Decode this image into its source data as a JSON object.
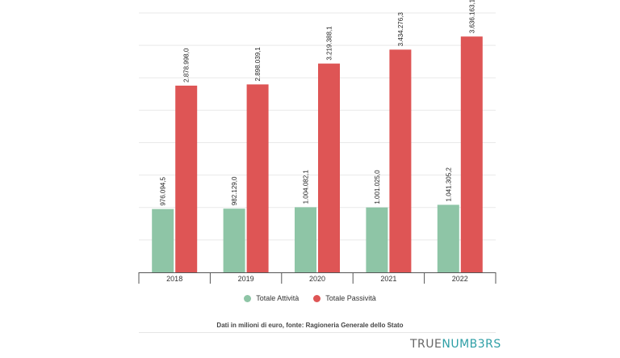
{
  "chart_data": {
    "type": "bar",
    "categories": [
      "2018",
      "2019",
      "2020",
      "2021",
      "2022"
    ],
    "series": [
      {
        "name": "Totale Attività",
        "color": "#8ec5a6",
        "values": [
          976094.5,
          982129.0,
          1004082.1,
          1001025.0,
          1041305.2
        ],
        "labels": [
          "976.094,5",
          "982.129,0",
          "1.004.082,1",
          "1.001.025,0",
          "1.041.305,2"
        ]
      },
      {
        "name": "Totale Passività",
        "color": "#de5555",
        "values": [
          2878998.0,
          2898039.1,
          3219388.1,
          3434276.3,
          3636163.1
        ],
        "labels": [
          "2.878.998,0",
          "2.898.039,1",
          "3.219.388,1",
          "3.434.276,3",
          "3.636.163,1"
        ]
      }
    ],
    "ylim": [
      0,
      4000000
    ],
    "grid": true,
    "legend": "bottom"
  },
  "source_note": "Dati in milioni di euro, fonte: Ragioneria Generale dello Stato",
  "brand": {
    "part1": "TRUE",
    "part2": "NUMB3RS"
  }
}
